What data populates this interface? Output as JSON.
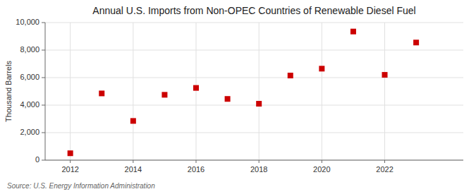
{
  "chart_data": {
    "type": "scatter",
    "title": "Annual U.S. Imports from Non-OPEC Countries of Renewable Diesel Fuel",
    "ylabel": "Thousand Barrels",
    "annotations": [
      "Source: U.S. Energy Information Administration"
    ],
    "x": [
      2012,
      2013,
      2014,
      2015,
      2016,
      2017,
      2018,
      2019,
      2020,
      2021,
      2022,
      2023
    ],
    "values": [
      500,
      4850,
      2850,
      4750,
      5250,
      4450,
      4100,
      6150,
      6650,
      9350,
      6200,
      8550
    ],
    "color": "#cc0000",
    "marker": "square",
    "xlim": [
      2011.2,
      2024.5
    ],
    "xticks": [
      2012,
      2014,
      2016,
      2018,
      2020,
      2022
    ],
    "ylim": [
      0,
      10000
    ],
    "yticks": [
      0,
      {
        "value": 2000,
        "label": "2,000"
      },
      {
        "value": 4000,
        "label": "4,000"
      },
      {
        "value": 6000,
        "label": "6,000"
      },
      {
        "value": 8000,
        "label": "8,000"
      },
      {
        "value": 10000,
        "label": "10,000"
      }
    ],
    "grid": true
  }
}
